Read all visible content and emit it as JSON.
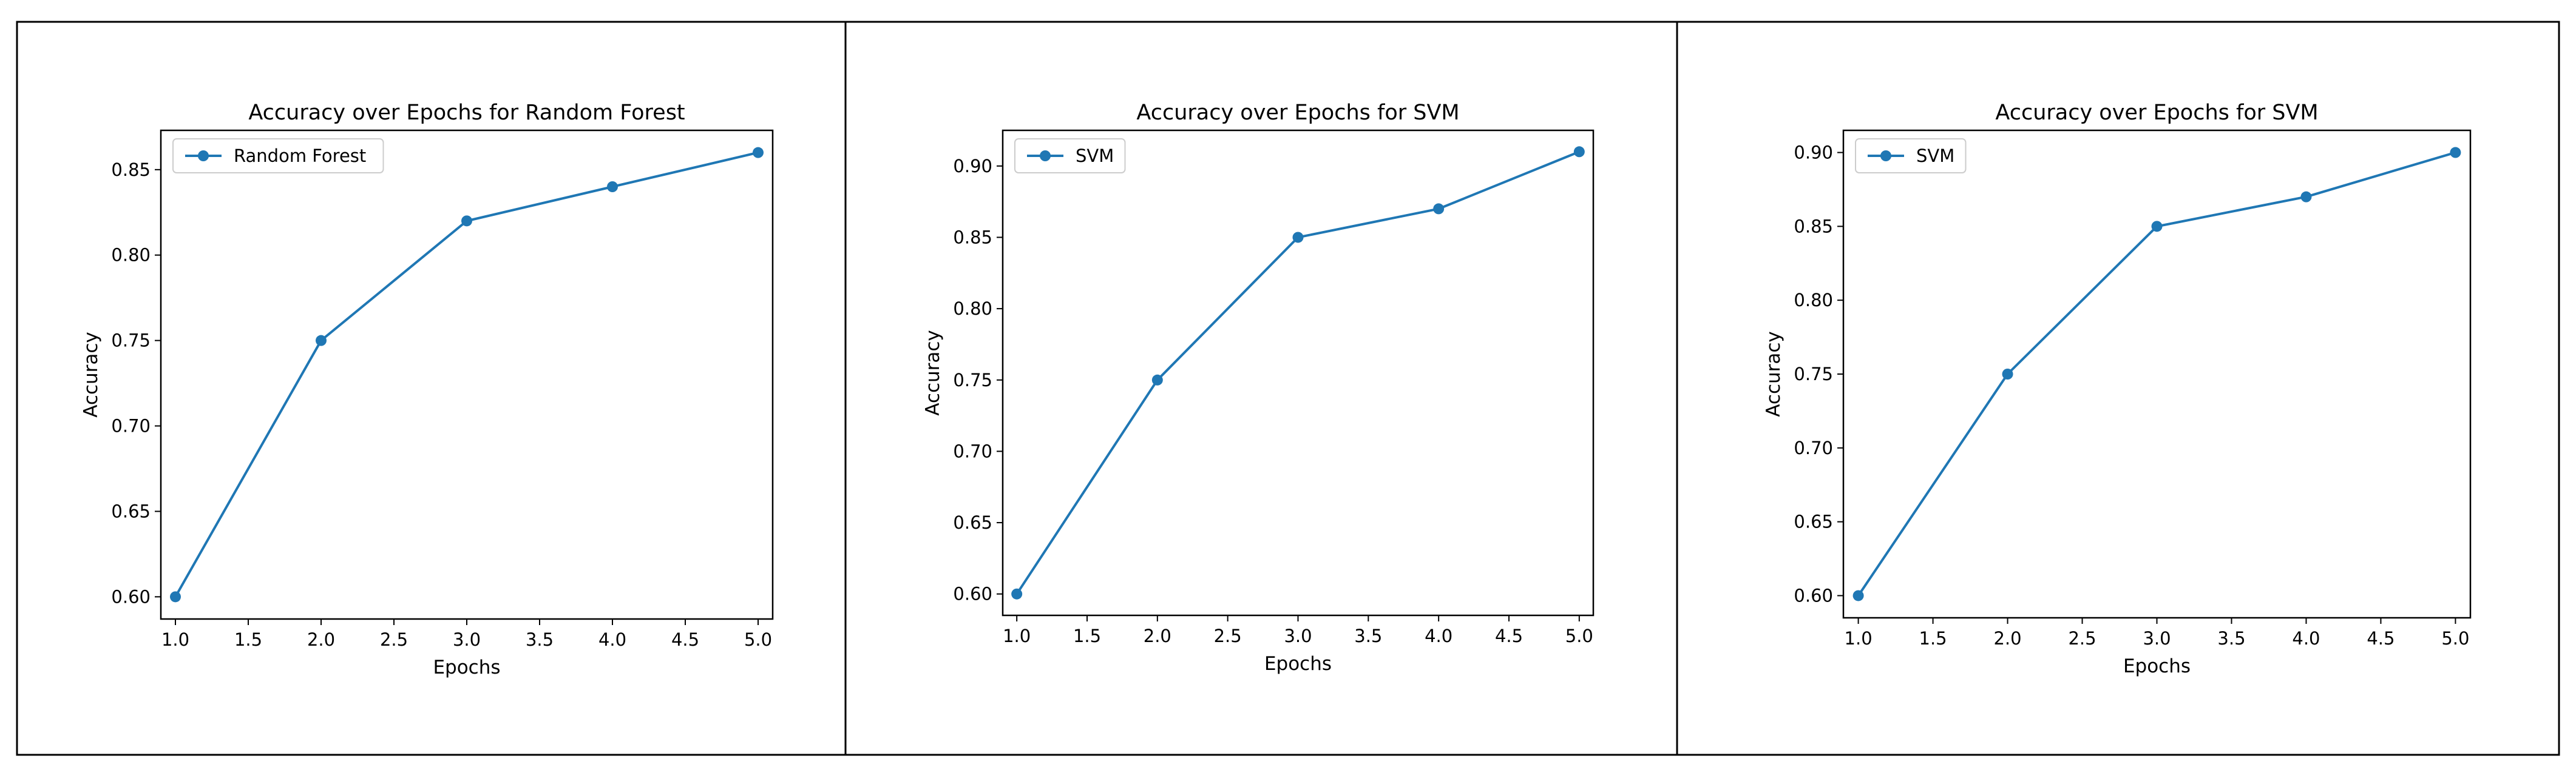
{
  "chart_data": [
    {
      "type": "line",
      "title": "Accuracy over Epochs for Random Forest",
      "xlabel": "Epochs",
      "ylabel": "Accuracy",
      "xlim": [
        0.9,
        5.1
      ],
      "ylim": [
        0.587,
        0.873
      ],
      "xticks": [
        "1.0",
        "1.5",
        "2.0",
        "2.5",
        "3.0",
        "3.5",
        "4.0",
        "4.5",
        "5.0"
      ],
      "yticks": [
        "0.60",
        "0.65",
        "0.70",
        "0.75",
        "0.80",
        "0.85"
      ],
      "grid": false,
      "legend_position": "upper-left",
      "series": [
        {
          "name": "Random Forest",
          "color": "#1f77b4",
          "marker": "circle",
          "x": [
            1,
            2,
            3,
            4,
            5
          ],
          "y": [
            0.6,
            0.75,
            0.82,
            0.84,
            0.86
          ]
        }
      ]
    },
    {
      "type": "line",
      "title": "Accuracy over Epochs for SVM",
      "xlabel": "Epochs",
      "ylabel": "Accuracy",
      "xlim": [
        0.9,
        5.1
      ],
      "ylim": [
        0.585,
        0.925
      ],
      "xticks": [
        "1.0",
        "1.5",
        "2.0",
        "2.5",
        "3.0",
        "3.5",
        "4.0",
        "4.5",
        "5.0"
      ],
      "yticks": [
        "0.60",
        "0.65",
        "0.70",
        "0.75",
        "0.80",
        "0.85",
        "0.90"
      ],
      "grid": false,
      "legend_position": "upper-left",
      "series": [
        {
          "name": "SVM",
          "color": "#1f77b4",
          "marker": "circle",
          "x": [
            1,
            2,
            3,
            4,
            5
          ],
          "y": [
            0.6,
            0.75,
            0.85,
            0.87,
            0.91
          ]
        }
      ]
    },
    {
      "type": "line",
      "title": "Accuracy over Epochs for SVM",
      "xlabel": "Epochs",
      "ylabel": "Accuracy",
      "xlim": [
        0.9,
        5.1
      ],
      "ylim": [
        0.585,
        0.915
      ],
      "xticks": [
        "1.0",
        "1.5",
        "2.0",
        "2.5",
        "3.0",
        "3.5",
        "4.0",
        "4.5",
        "5.0"
      ],
      "yticks": [
        "0.60",
        "0.65",
        "0.70",
        "0.75",
        "0.80",
        "0.85",
        "0.90"
      ],
      "grid": false,
      "legend_position": "upper-left",
      "series": [
        {
          "name": "SVM",
          "color": "#1f77b4",
          "marker": "circle",
          "x": [
            1,
            2,
            3,
            4,
            5
          ],
          "y": [
            0.6,
            0.75,
            0.85,
            0.87,
            0.9
          ]
        }
      ]
    }
  ]
}
